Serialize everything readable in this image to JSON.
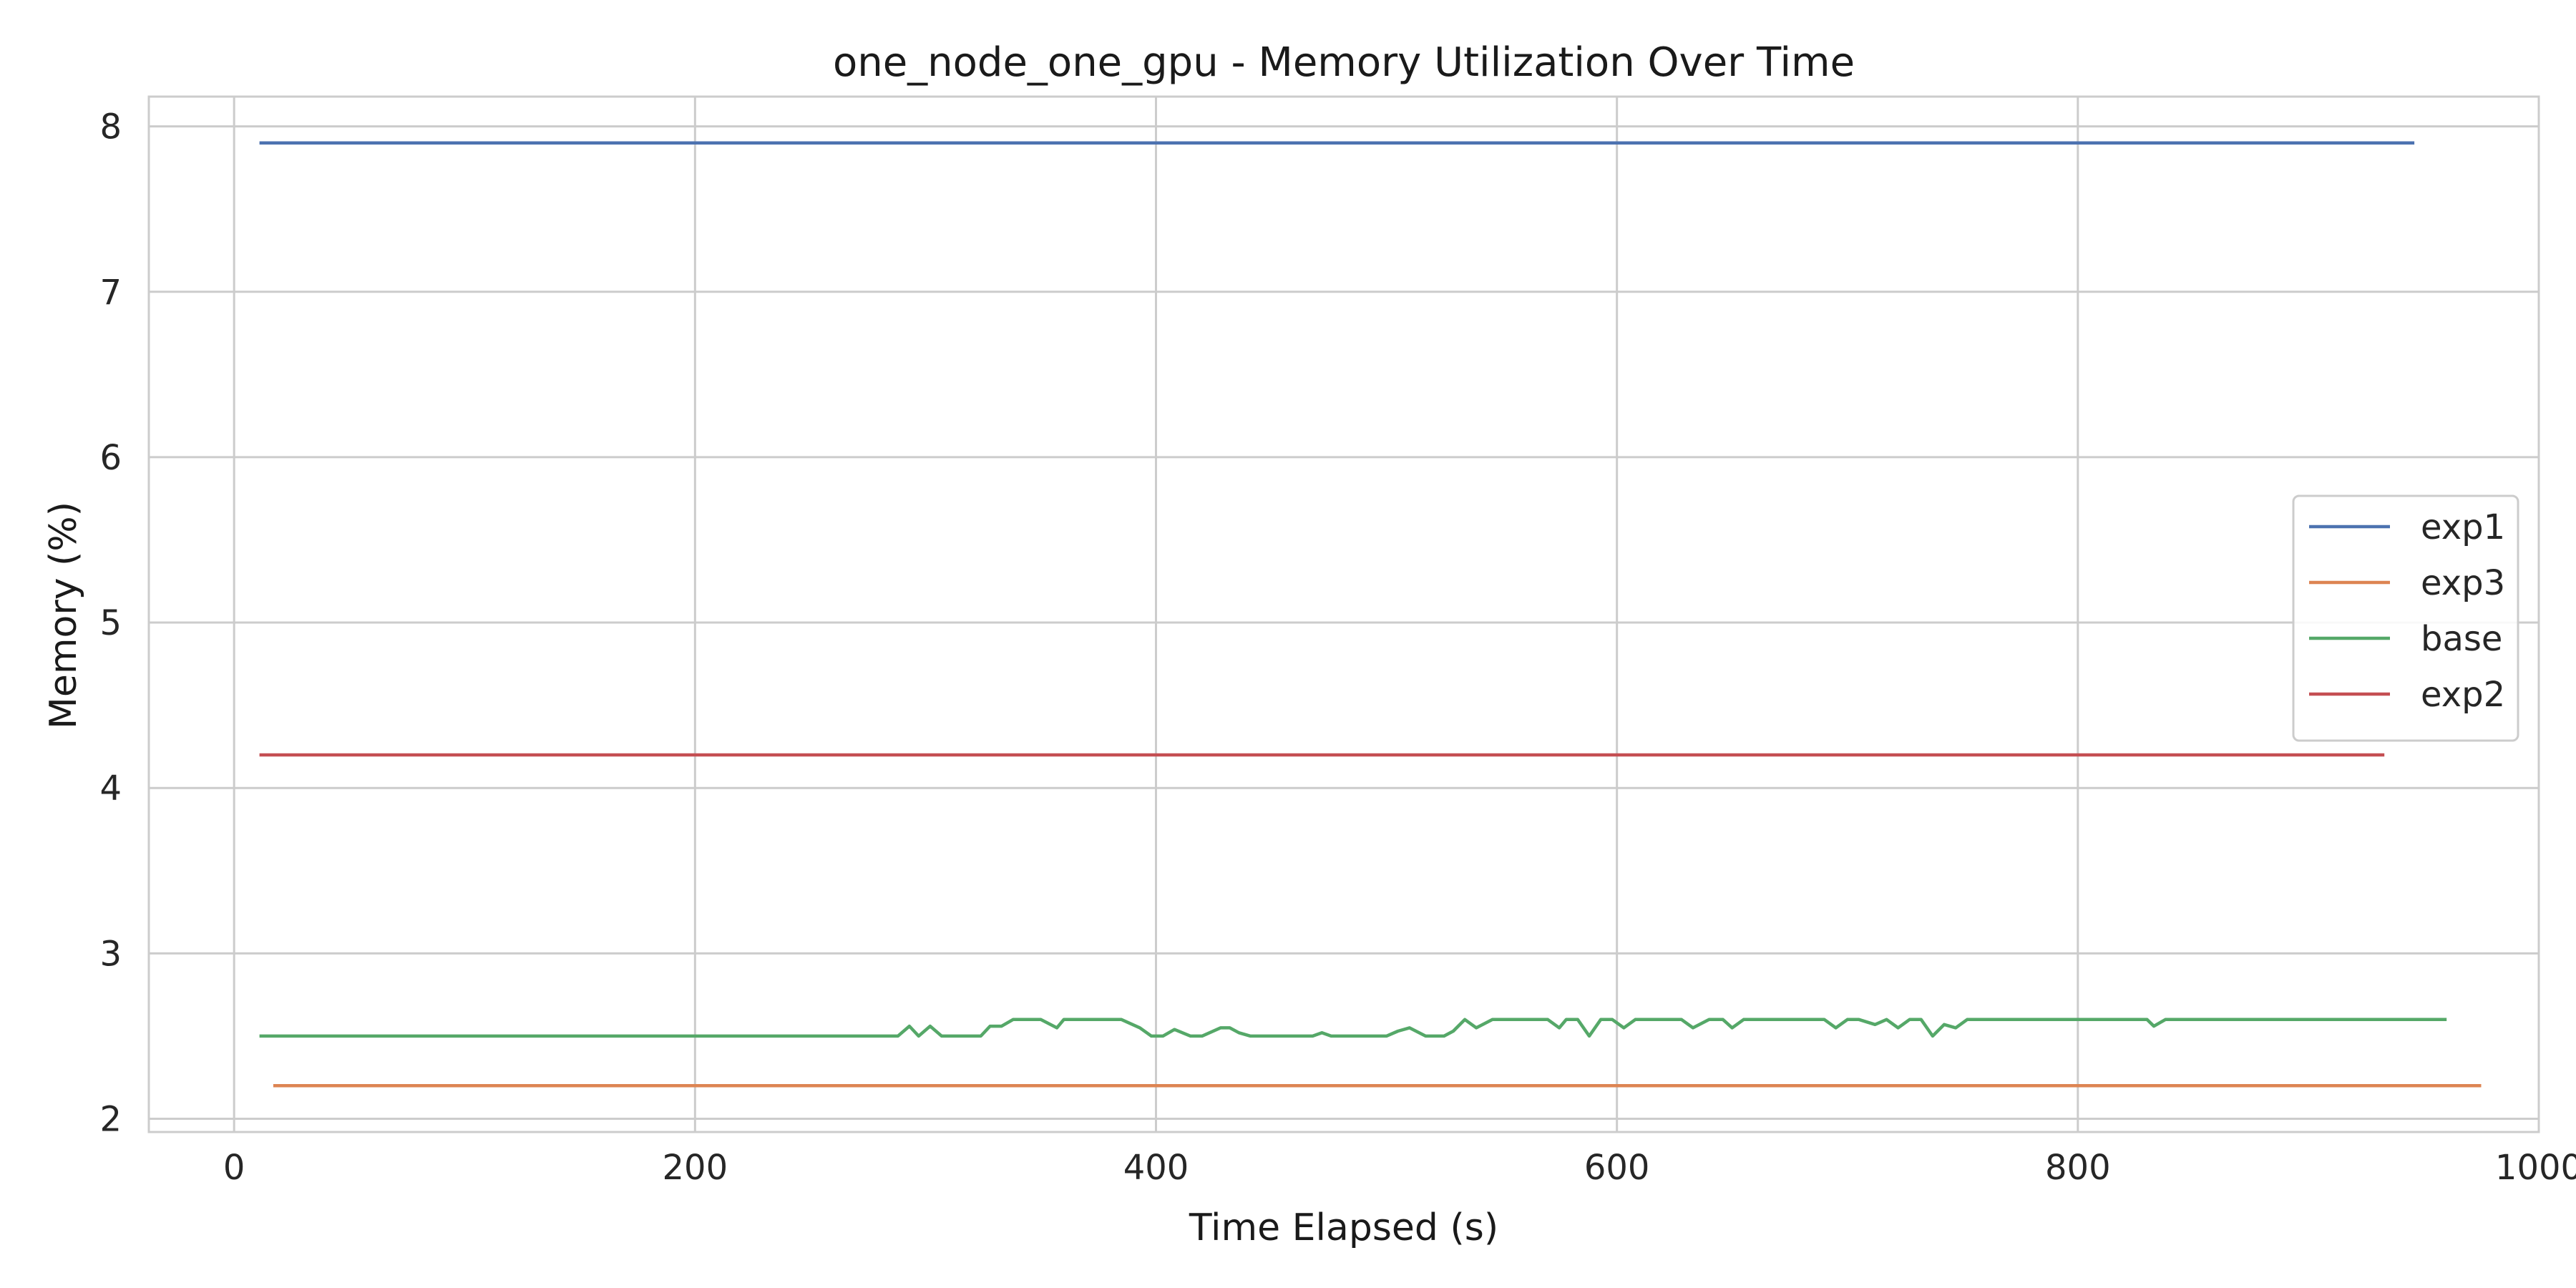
{
  "chart_data": {
    "type": "line",
    "title": "one_node_one_gpu - Memory Utilization Over Time",
    "xlabel": "Time Elapsed (s)",
    "ylabel": "Memory (%)",
    "xlim": [
      -37,
      1000
    ],
    "ylim": [
      1.92,
      8.18
    ],
    "xticks": [
      0,
      200,
      400,
      600,
      800,
      1000
    ],
    "yticks": [
      2,
      3,
      4,
      5,
      6,
      7,
      8
    ],
    "grid": true,
    "legend": "center-right",
    "series": [
      {
        "name": "exp1",
        "color": "#4c72b0",
        "x": [
          11,
          946
        ],
        "y": [
          7.9,
          7.9
        ]
      },
      {
        "name": "exp3",
        "color": "#dd8452",
        "x": [
          17,
          975
        ],
        "y": [
          2.2,
          2.2
        ]
      },
      {
        "name": "base",
        "color": "#55a868",
        "x": [
          11,
          288,
          293,
          297,
          302,
          307,
          312,
          318,
          324,
          328,
          333,
          338,
          343,
          350,
          357,
          360,
          365,
          370,
          375,
          380,
          385,
          393,
          398,
          403,
          408,
          415,
          420,
          428,
          432,
          436,
          441,
          446,
          452,
          468,
          472,
          476,
          483,
          500,
          505,
          510,
          517,
          525,
          529,
          534,
          539,
          546,
          552,
          558,
          565,
          570,
          575,
          578,
          583,
          588,
          593,
          598,
          603,
          608,
          612,
          628,
          633,
          640,
          646,
          650,
          655,
          660,
          690,
          695,
          700,
          705,
          712,
          717,
          722,
          727,
          732,
          737,
          742,
          747,
          752,
          760,
          810,
          830,
          833,
          838,
          843,
          960
        ],
        "y": [
          2.5,
          2.5,
          2.56,
          2.5,
          2.56,
          2.5,
          2.5,
          2.5,
          2.5,
          2.56,
          2.56,
          2.6,
          2.6,
          2.6,
          2.55,
          2.6,
          2.6,
          2.6,
          2.6,
          2.6,
          2.6,
          2.55,
          2.5,
          2.5,
          2.54,
          2.5,
          2.5,
          2.55,
          2.55,
          2.52,
          2.5,
          2.5,
          2.5,
          2.5,
          2.52,
          2.5,
          2.5,
          2.5,
          2.53,
          2.55,
          2.5,
          2.5,
          2.53,
          2.6,
          2.55,
          2.6,
          2.6,
          2.6,
          2.6,
          2.6,
          2.55,
          2.6,
          2.6,
          2.5,
          2.6,
          2.6,
          2.55,
          2.6,
          2.6,
          2.6,
          2.55,
          2.6,
          2.6,
          2.55,
          2.6,
          2.6,
          2.6,
          2.55,
          2.6,
          2.6,
          2.57,
          2.6,
          2.55,
          2.6,
          2.6,
          2.5,
          2.57,
          2.55,
          2.6,
          2.6,
          2.6,
          2.6,
          2.56,
          2.6,
          2.6,
          2.6
        ]
      },
      {
        "name": "exp2",
        "color": "#c44e52",
        "x": [
          11,
          933
        ],
        "y": [
          4.2,
          4.2
        ]
      }
    ]
  }
}
